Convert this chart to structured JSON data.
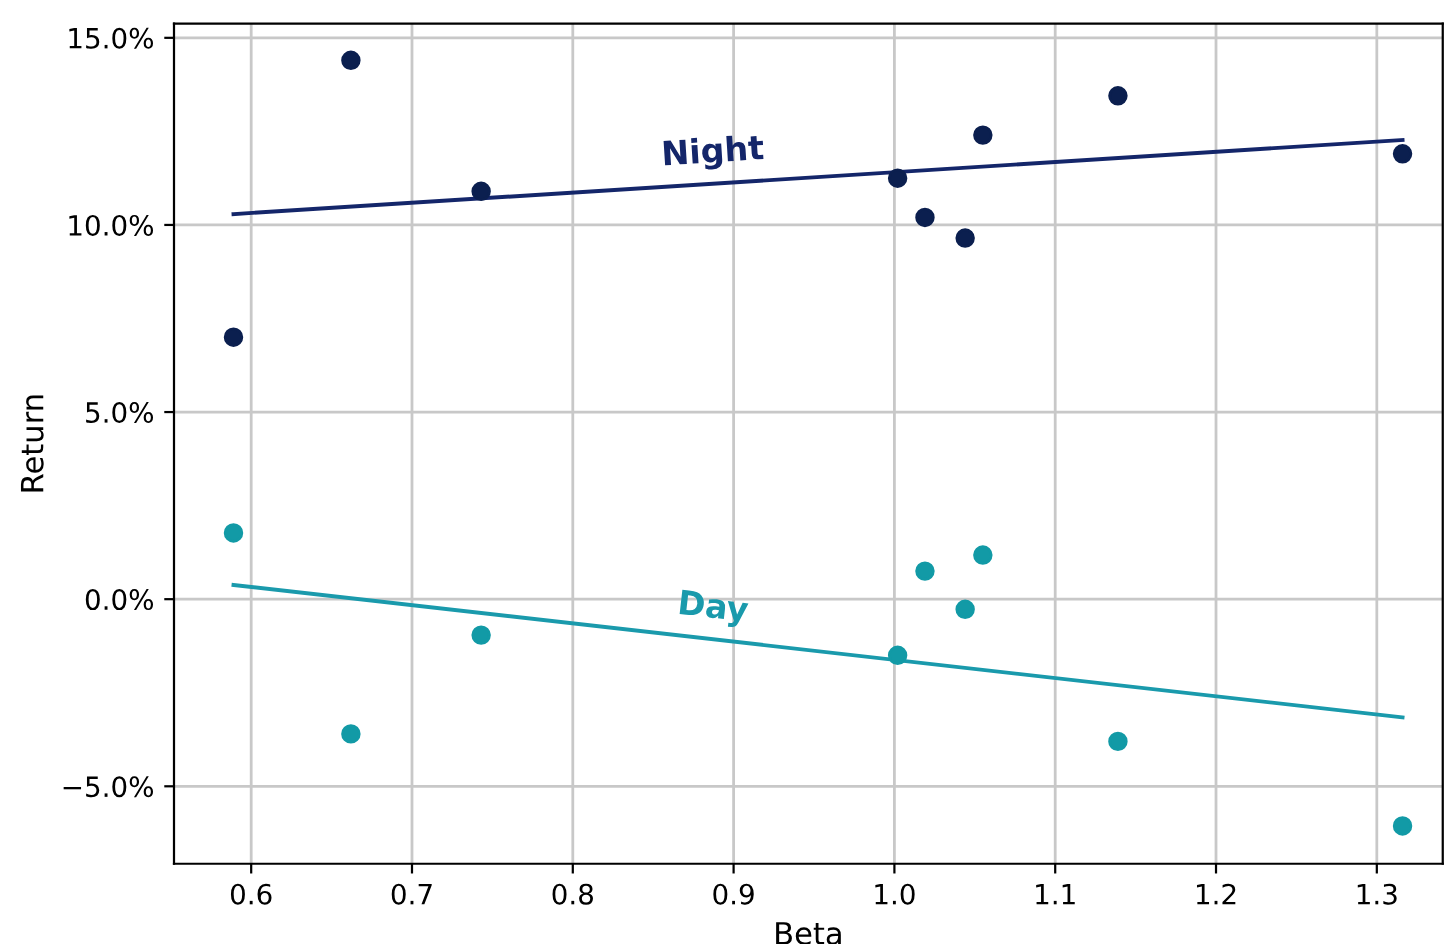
{
  "chart_data": {
    "type": "scatter",
    "xlabel": "Beta",
    "ylabel": "Return",
    "series": [
      {
        "color": "#0b1f4f",
        "marker": "circle",
        "x": [
          0.589,
          0.662,
          0.743,
          1.002,
          1.019,
          1.044,
          1.055,
          1.139,
          1.316
        ],
        "values": [
          7.0,
          14.4,
          10.9,
          11.25,
          10.2,
          9.65,
          12.4,
          13.45,
          11.9
        ]
      },
      {
        "color": "#129aa6",
        "marker": "circle",
        "x": [
          0.589,
          0.662,
          0.743,
          1.002,
          1.019,
          1.044,
          1.055,
          1.139,
          1.316
        ],
        "values": [
          1.77,
          -3.6,
          -0.96,
          -1.5,
          0.75,
          -0.27,
          1.18,
          -3.8,
          -6.06
        ]
      },
      {
        "type": "line",
        "name": "Night",
        "color": "#14266a",
        "marker": "none",
        "x": [
          0.589,
          1.316
        ],
        "values": [
          10.29,
          12.27
        ]
      },
      {
        "type": "line",
        "name": "Day",
        "color": "#1a9aac",
        "marker": "none",
        "x": [
          0.589,
          1.316
        ],
        "values": [
          0.38,
          -3.16
        ]
      }
    ],
    "grid": true,
    "xlim": [
      0.552,
      1.341
    ],
    "xticks": [
      0.6,
      0.7,
      0.8,
      0.9,
      {
        "value": 1.0,
        "label": "1.0"
      },
      1.1,
      1.2,
      1.3
    ],
    "ylim": [
      -7.07,
      15.38
    ],
    "yticks": [
      {
        "value": -5,
        "label": "−5.0%"
      },
      {
        "value": 0,
        "label": "0.0%"
      },
      {
        "value": 5,
        "label": "5.0%"
      },
      {
        "value": 10,
        "label": "10.0%"
      },
      {
        "value": 15,
        "label": "15.0%"
      }
    ]
  }
}
